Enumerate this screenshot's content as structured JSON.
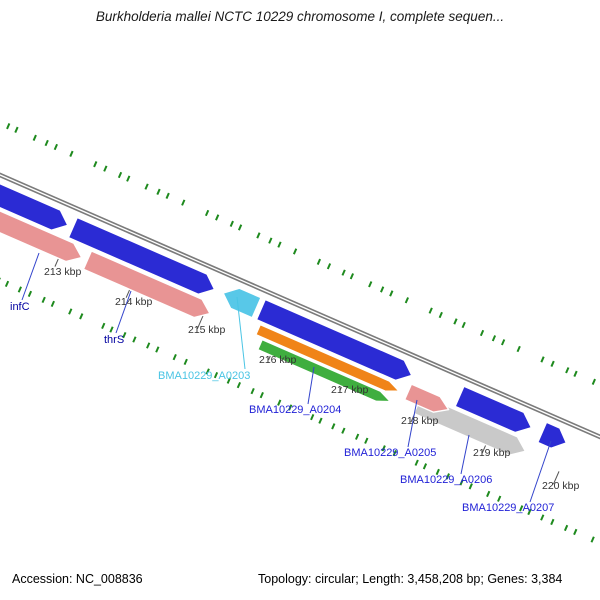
{
  "title": "Burkholderia mallei NCTC 10229 chromosome I, complete sequen...",
  "status_bar": {
    "accession": "Accession: NC_008836",
    "topology": "Topology: circular; Length: 3,458,208 bp; Genes: 3,384"
  },
  "ruler": {
    "unit": "kbp",
    "ticks": [
      "213 kbp",
      "214 kbp",
      "215 kbp",
      "216 kbp",
      "217 kbp",
      "218 kbp",
      "219 kbp",
      "220 kbp"
    ]
  },
  "labels": {
    "infC": "infC",
    "thrS": "thrS",
    "a0203": "BMA10229_A0203",
    "a0204": "BMA10229_A0204",
    "a0205": "BMA10229_A0205",
    "a0206": "BMA10229_A0206",
    "a0207": "BMA10229_A0207"
  },
  "colors": {
    "gene_blue": "#2b2bd4",
    "gene_salmon": "#e89494",
    "gene_orange": "#f08418",
    "gene_green": "#3fae3f",
    "gene_gray": "#c9c9c9",
    "gene_cyan": "#58c8e8",
    "backbone_gray": "#7b7b7b",
    "tick_green": "#1e8a1e",
    "label_navy": "#0000a0",
    "label_blue": "#1f1fd6",
    "label_cyan": "#49c4e4"
  },
  "genes": [
    {
      "name": "infC",
      "color": "#e89494",
      "lane": "l",
      "start_kbp": 211.7,
      "end_kbp": 213.27,
      "dir": "right"
    },
    {
      "name": "thrS",
      "color": "#e89494",
      "lane": "l",
      "start_kbp": 213.35,
      "end_kbp": 215.07,
      "dir": "right"
    },
    {
      "name": "BMA10229_A0204",
      "color": "#f08418",
      "lane": "la",
      "start_kbp": 215.72,
      "end_kbp": 217.7,
      "dir": "right"
    },
    {
      "name": "",
      "color": "#3fae3f",
      "lane": "lb",
      "start_kbp": 215.82,
      "end_kbp": 217.65,
      "dir": "right"
    },
    {
      "name": "BMA10229_A0206",
      "color": "#c9c9c9",
      "lane": "l",
      "start_kbp": 217.99,
      "end_kbp": 219.5,
      "dir": "right"
    },
    {
      "name": "",
      "color": "#2b2bd4",
      "lane": "u",
      "start_kbp": 211.7,
      "end_kbp": 212.94,
      "dir": "right"
    },
    {
      "name": "",
      "color": "#2b2bd4",
      "lane": "u",
      "start_kbp": 213.01,
      "end_kbp": 215.0,
      "dir": "right"
    },
    {
      "name": "",
      "color": "#2b2bd4",
      "lane": "u",
      "start_kbp": 215.65,
      "end_kbp": 217.77,
      "dir": "right"
    },
    {
      "name": "BMA10229_A0203",
      "color": "#58c8e8",
      "lane": "u",
      "start_kbp": 215.12,
      "end_kbp": 215.59,
      "dir": "left"
    },
    {
      "name": "BMA10229_A0205",
      "color": "#e89494",
      "lane": "m",
      "start_kbp": 217.81,
      "end_kbp": 218.38,
      "dir": "right"
    },
    {
      "name": "",
      "color": "#2b2bd4",
      "lane": "u",
      "start_kbp": 218.44,
      "end_kbp": 219.45,
      "dir": "right"
    },
    {
      "name": "BMA10229_A0207",
      "color": "#2b2bd4",
      "lane": "u",
      "start_kbp": 219.6,
      "end_kbp": 219.94,
      "dir": "right"
    }
  ]
}
